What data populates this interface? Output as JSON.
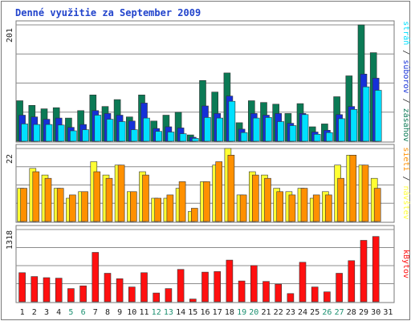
{
  "chart_data": [
    {
      "type": "bar",
      "title": "Denné využitie za September 2009",
      "panel": "hits",
      "ymax_label": "201",
      "ylim": [
        0,
        201
      ],
      "categories": [
        "1",
        "2",
        "3",
        "4",
        "5",
        "6",
        "7",
        "8",
        "9",
        "10",
        "11",
        "12",
        "13",
        "14",
        "15",
        "16",
        "17",
        "18",
        "19",
        "20",
        "21",
        "22",
        "23",
        "24",
        "25",
        "26",
        "27",
        "28",
        "29",
        "30",
        "31"
      ],
      "weekend_days": [
        "5",
        "6",
        "12",
        "13",
        "19",
        "20",
        "26",
        "27"
      ],
      "label_parts": [
        {
          "text": "stráň",
          "color": "#00e0ff"
        },
        {
          "text": " / ",
          "color": "#2b2b2b"
        },
        {
          "text": "súborov",
          "color": "#1530d8"
        },
        {
          "text": " / ",
          "color": "#2b2b2b"
        },
        {
          "text": "zásahov",
          "color": "#0b7a55"
        }
      ],
      "series": [
        {
          "name": "zásahov",
          "color": "#0b7a55",
          "values": [
            70,
            62,
            56,
            58,
            40,
            53,
            80,
            60,
            72,
            42,
            80,
            35,
            45,
            50,
            11,
            105,
            85,
            118,
            32,
            70,
            67,
            64,
            48,
            65,
            25,
            30,
            77,
            113,
            201,
            153,
            0
          ]
        },
        {
          "name": "súborov",
          "color": "#1530d8",
          "values": [
            45,
            42,
            38,
            40,
            24,
            29,
            53,
            48,
            45,
            35,
            66,
            22,
            25,
            23,
            7,
            61,
            48,
            78,
            21,
            48,
            45,
            48,
            31,
            48,
            16,
            19,
            46,
            60,
            116,
            109,
            0
          ]
        },
        {
          "name": "stráň",
          "color": "#00e0ff",
          "values": [
            30,
            29,
            29,
            28,
            18,
            20,
            45,
            38,
            34,
            20,
            40,
            17,
            16,
            13,
            5,
            41,
            40,
            69,
            15,
            40,
            41,
            34,
            27,
            46,
            12,
            15,
            39,
            55,
            94,
            88,
            0
          ]
        }
      ]
    },
    {
      "type": "bar",
      "panel": "visits",
      "ymax_label": "22",
      "ylim": [
        0,
        22
      ],
      "categories": [
        "1",
        "2",
        "3",
        "4",
        "5",
        "6",
        "7",
        "8",
        "9",
        "10",
        "11",
        "12",
        "13",
        "14",
        "15",
        "16",
        "17",
        "18",
        "19",
        "20",
        "21",
        "22",
        "23",
        "24",
        "25",
        "26",
        "27",
        "28",
        "29",
        "30",
        "31"
      ],
      "label_parts": [
        {
          "text": "sietí",
          "color": "#ff9000"
        },
        {
          "text": " / ",
          "color": "#2b2b2b"
        },
        {
          "text": "návštev",
          "color": "#ffff33"
        }
      ],
      "series": [
        {
          "name": "návštev",
          "color": "#ffff33",
          "values": [
            10,
            16,
            14,
            10,
            7,
            9,
            18,
            14,
            17,
            9,
            15,
            7,
            7,
            10,
            3,
            12,
            17,
            22,
            8,
            15,
            14,
            10,
            9,
            10,
            7,
            9,
            17,
            20,
            17,
            13,
            0
          ]
        },
        {
          "name": "sietí",
          "color": "#ff9000",
          "values": [
            10,
            15,
            13,
            10,
            8,
            9,
            15,
            13,
            17,
            9,
            14,
            7,
            8,
            12,
            4,
            12,
            18,
            20,
            8,
            14,
            13,
            9,
            8,
            10,
            8,
            8,
            13,
            20,
            17,
            10,
            0
          ]
        }
      ]
    },
    {
      "type": "bar",
      "panel": "kbytes",
      "ymax_label": "1318",
      "ylim": [
        0,
        1318
      ],
      "categories": [
        "1",
        "2",
        "3",
        "4",
        "5",
        "6",
        "7",
        "8",
        "9",
        "10",
        "11",
        "12",
        "13",
        "14",
        "15",
        "16",
        "17",
        "18",
        "19",
        "20",
        "21",
        "22",
        "23",
        "24",
        "25",
        "26",
        "27",
        "28",
        "29",
        "30",
        "31"
      ],
      "label_parts": [
        {
          "text": "kBytov",
          "color": "#ff1010"
        }
      ],
      "series": [
        {
          "name": "kBytov",
          "color": "#ff1010",
          "values": [
            530,
            460,
            440,
            430,
            240,
            290,
            900,
            520,
            420,
            270,
            530,
            160,
            240,
            590,
            50,
            540,
            550,
            760,
            380,
            660,
            370,
            320,
            150,
            720,
            270,
            180,
            520,
            750,
            1120,
            1190,
            0
          ]
        }
      ]
    }
  ]
}
